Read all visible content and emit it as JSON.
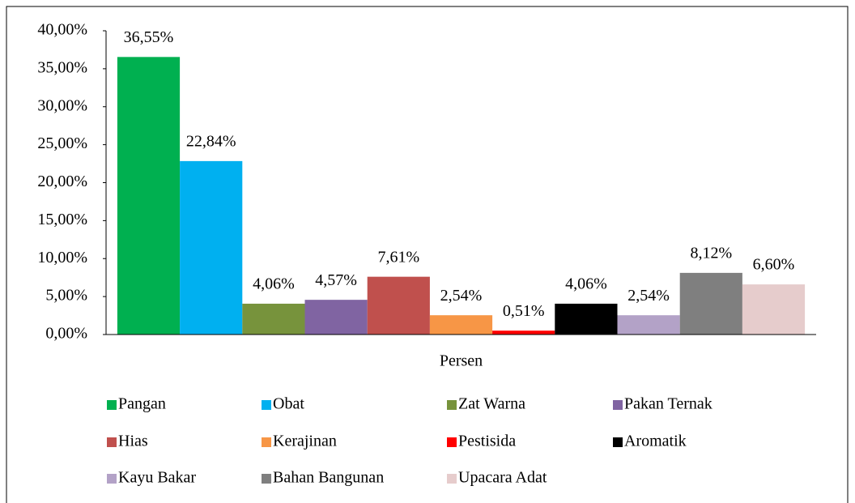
{
  "chart_data": {
    "type": "bar",
    "categories": [
      "Persen"
    ],
    "series": [
      {
        "name": "Pangan",
        "color": "#00b050",
        "values": [
          36.55
        ],
        "value_labels": [
          "36,55%"
        ]
      },
      {
        "name": "Obat",
        "color": "#00b0f0",
        "values": [
          22.84
        ],
        "value_labels": [
          "22,84%"
        ]
      },
      {
        "name": "Zat Warna",
        "color": "#77933c",
        "values": [
          4.06
        ],
        "value_labels": [
          "4,06%"
        ]
      },
      {
        "name": "Pakan Ternak",
        "color": "#8064a2",
        "values": [
          4.57
        ],
        "value_labels": [
          "4,57%"
        ]
      },
      {
        "name": "Hias",
        "color": "#c0504d",
        "values": [
          7.61
        ],
        "value_labels": [
          "7,61%"
        ]
      },
      {
        "name": "Kerajinan",
        "color": "#f79646",
        "values": [
          2.54
        ],
        "value_labels": [
          "2,54%"
        ]
      },
      {
        "name": "Pestisida",
        "color": "#ff0000",
        "values": [
          0.51
        ],
        "value_labels": [
          "0,51%"
        ]
      },
      {
        "name": "Aromatik",
        "color": "#000000",
        "values": [
          4.06
        ],
        "value_labels": [
          "4,06%"
        ]
      },
      {
        "name": "Kayu Bakar",
        "color": "#b3a2c7",
        "values": [
          2.54
        ],
        "value_labels": [
          "2,54%"
        ]
      },
      {
        "name": "Bahan Bangunan",
        "color": "#7f7f7f",
        "values": [
          8.12
        ],
        "value_labels": [
          "8,12%"
        ]
      },
      {
        "name": "Upacara Adat",
        "color": "#e6cccc",
        "values": [
          6.6
        ],
        "value_labels": [
          "6,60%"
        ]
      }
    ],
    "ylim": [
      0,
      40
    ],
    "yticks": [
      {
        "value": 0,
        "label": "0,00%"
      },
      {
        "value": 5,
        "label": "5,00%"
      },
      {
        "value": 10,
        "label": "10,00%"
      },
      {
        "value": 15,
        "label": "15,00%"
      },
      {
        "value": 20,
        "label": "20,00%"
      },
      {
        "value": 25,
        "label": "25,00%"
      },
      {
        "value": 30,
        "label": "30,00%"
      },
      {
        "value": 35,
        "label": "35,00%"
      },
      {
        "value": 40,
        "label": "40,00%"
      }
    ],
    "legend": "bottom"
  }
}
